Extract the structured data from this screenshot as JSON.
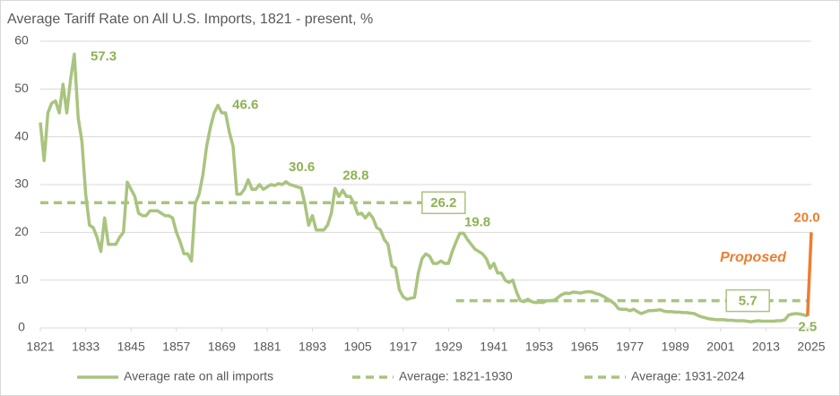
{
  "chart_data": {
    "type": "line",
    "title": "Average Tariff Rate on All U.S. Imports, 1821 - present, %",
    "xlim": [
      1821,
      2025
    ],
    "ylim": [
      0,
      60
    ],
    "xticks": [
      1821,
      1833,
      1845,
      1857,
      1869,
      1881,
      1893,
      1905,
      1917,
      1929,
      1941,
      1953,
      1965,
      1977,
      1989,
      2001,
      2013,
      2025
    ],
    "yticks": [
      0,
      10,
      20,
      30,
      40,
      50,
      60
    ],
    "grid": true,
    "legend": "bottom",
    "series": [
      {
        "name": "Average rate on all imports",
        "color": "#A9C47F",
        "style": "solid",
        "x": [
          1821,
          1822,
          1823,
          1824,
          1825,
          1826,
          1827,
          1828,
          1829,
          1830,
          1831,
          1832,
          1833,
          1834,
          1835,
          1836,
          1837,
          1838,
          1839,
          1840,
          1841,
          1842,
          1843,
          1844,
          1845,
          1846,
          1847,
          1848,
          1849,
          1850,
          1851,
          1852,
          1853,
          1854,
          1855,
          1856,
          1857,
          1858,
          1859,
          1860,
          1861,
          1862,
          1863,
          1864,
          1865,
          1866,
          1867,
          1868,
          1869,
          1870,
          1871,
          1872,
          1873,
          1874,
          1875,
          1876,
          1877,
          1878,
          1879,
          1880,
          1881,
          1882,
          1883,
          1884,
          1885,
          1886,
          1887,
          1888,
          1889,
          1890,
          1891,
          1892,
          1893,
          1894,
          1895,
          1896,
          1897,
          1898,
          1899,
          1900,
          1901,
          1902,
          1903,
          1904,
          1905,
          1906,
          1907,
          1908,
          1909,
          1910,
          1911,
          1912,
          1913,
          1914,
          1915,
          1916,
          1917,
          1918,
          1919,
          1920,
          1921,
          1922,
          1923,
          1924,
          1925,
          1926,
          1927,
          1928,
          1929,
          1930,
          1931,
          1932,
          1933,
          1934,
          1935,
          1936,
          1937,
          1938,
          1939,
          1940,
          1941,
          1942,
          1943,
          1944,
          1945,
          1946,
          1947,
          1948,
          1949,
          1950,
          1951,
          1952,
          1953,
          1954,
          1955,
          1956,
          1957,
          1958,
          1959,
          1960,
          1961,
          1962,
          1963,
          1964,
          1965,
          1966,
          1967,
          1968,
          1969,
          1970,
          1971,
          1972,
          1973,
          1974,
          1975,
          1976,
          1977,
          1978,
          1979,
          1980,
          1981,
          1982,
          1983,
          1984,
          1985,
          1986,
          1987,
          1988,
          1989,
          1990,
          1991,
          1992,
          1993,
          1994,
          1995,
          1996,
          1997,
          1998,
          1999,
          2000,
          2001,
          2002,
          2003,
          2004,
          2005,
          2006,
          2007,
          2008,
          2009,
          2010,
          2011,
          2012,
          2013,
          2014,
          2015,
          2016,
          2017,
          2018,
          2019,
          2020,
          2021,
          2022,
          2023,
          2024
        ],
        "values": [
          43,
          35,
          45,
          47,
          47.5,
          45,
          51,
          45,
          52,
          57.3,
          44,
          39,
          28,
          21.5,
          21,
          19,
          16,
          23,
          17.5,
          17.5,
          17.5,
          19,
          20,
          30.5,
          29,
          27.5,
          24,
          23.5,
          23.5,
          24.5,
          24.5,
          24.5,
          24,
          23.5,
          23.5,
          23,
          20,
          18,
          15.5,
          15.5,
          14,
          26,
          28,
          32,
          38,
          42,
          45,
          46.6,
          45,
          45,
          41,
          38,
          28,
          28,
          29,
          31,
          29,
          29,
          30,
          29,
          29.5,
          30,
          29.8,
          30.2,
          30,
          30.6,
          30,
          29.8,
          29.5,
          29.3,
          26,
          21.5,
          23.5,
          20.5,
          20.5,
          20.5,
          21.5,
          24,
          29.2,
          27.5,
          28.8,
          27.5,
          27.5,
          26,
          23.8,
          24,
          23,
          24,
          23,
          21,
          20.5,
          18.5,
          17.5,
          13,
          12.5,
          8,
          6.5,
          6,
          6.2,
          6.4,
          11.5,
          14.5,
          15.5,
          15,
          13.5,
          13.5,
          14,
          13.5,
          13.5,
          16,
          18,
          19.8,
          19.8,
          18.5,
          17.5,
          16.5,
          16,
          15.5,
          14.5,
          12.5,
          13.5,
          11.5,
          11.5,
          10,
          9.5,
          10,
          7.5,
          5.7,
          5.5,
          6,
          5.5,
          5.3,
          5.4,
          5.3,
          5.7,
          5.7,
          5.8,
          6.4,
          7,
          7.3,
          7.2,
          7.5,
          7.4,
          7.3,
          7.5,
          7.6,
          7.5,
          7.2,
          7,
          6.6,
          6.1,
          5.6,
          5,
          4,
          3.9,
          3.9,
          3.6,
          3.9,
          3.4,
          3,
          3.3,
          3.6,
          3.6,
          3.7,
          3.8,
          3.5,
          3.4,
          3.4,
          3.3,
          3.3,
          3.2,
          3.2,
          3.1,
          3,
          2.6,
          2.3,
          2.1,
          1.9,
          1.8,
          1.7,
          1.7,
          1.7,
          1.6,
          1.6,
          1.5,
          1.5,
          1.5,
          1.4,
          1.3,
          1.4,
          1.5,
          1.4,
          1.4,
          1.4,
          1.4,
          1.5,
          1.5,
          1.7,
          2.7,
          2.9,
          3,
          2.9,
          2.7,
          2.5
        ]
      },
      {
        "name": "Average: 1821-1930",
        "color": "#A9C47F",
        "style": "dashed",
        "x": [
          1821,
          1930
        ],
        "values": [
          26.2,
          26.2
        ]
      },
      {
        "name": "Average: 1931-2024",
        "color": "#A9C47F",
        "style": "dashed",
        "x": [
          1931,
          2024
        ],
        "values": [
          5.7,
          5.7
        ]
      },
      {
        "name": "Proposed",
        "color": "#ED7D31",
        "style": "solid",
        "in_legend": false,
        "x": [
          2024,
          2025
        ],
        "values": [
          2.5,
          20
        ],
        "value_labels": [
          null,
          "20.0"
        ]
      }
    ]
  }
}
